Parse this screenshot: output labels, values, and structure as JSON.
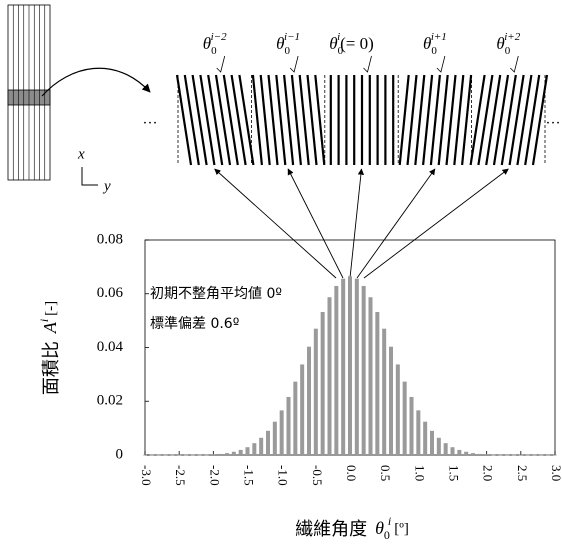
{
  "chart_data": {
    "type": "bar",
    "x": [
      -3.0,
      -2.9,
      -2.8,
      -2.7,
      -2.6,
      -2.5,
      -2.4,
      -2.3,
      -2.2,
      -2.1,
      -2.0,
      -1.9,
      -1.8,
      -1.7,
      -1.6,
      -1.5,
      -1.4,
      -1.3,
      -1.2,
      -1.1,
      -1.0,
      -0.9,
      -0.8,
      -0.7,
      -0.6,
      -0.5,
      -0.4,
      -0.3,
      -0.2,
      -0.1,
      0,
      0.1,
      0.2,
      0.3,
      0.4,
      0.5,
      0.6,
      0.7,
      0.8,
      0.9,
      1.0,
      1.1,
      1.2,
      1.3,
      1.4,
      1.5,
      1.6,
      1.7,
      1.8,
      1.9,
      2.0,
      2.1,
      2.2,
      2.3,
      2.4,
      2.5,
      2.6,
      2.7,
      2.8,
      2.9,
      3.0
    ],
    "values": [
      0.0001,
      0.0001,
      0.0001,
      0.0001,
      0.0001,
      0.0001,
      0.0001,
      0.0001,
      0.0001,
      0.0001,
      0.0003,
      0.0004,
      0.0007,
      0.0012,
      0.0019,
      0.0029,
      0.0044,
      0.0064,
      0.009,
      0.0124,
      0.0166,
      0.0216,
      0.0273,
      0.0337,
      0.0403,
      0.047,
      0.0532,
      0.0587,
      0.0629,
      0.0656,
      0.0665,
      0.0656,
      0.0629,
      0.0587,
      0.0532,
      0.047,
      0.0403,
      0.0337,
      0.0273,
      0.0216,
      0.0166,
      0.0124,
      0.009,
      0.0064,
      0.0044,
      0.0029,
      0.0019,
      0.0012,
      0.0007,
      0.0004,
      0.0003,
      0.0001,
      0.0001,
      0.0001,
      0.0001,
      0.0001,
      0.0001,
      0.0001,
      0.0001,
      0.0001,
      0.0001
    ],
    "color": "#9a9a9a",
    "xlim": [
      -3.0,
      3.0
    ],
    "xticks": [
      {
        "value": -3.0,
        "label": "-3.0"
      },
      {
        "value": -2.5,
        "label": "-2.5"
      },
      {
        "value": -2.0,
        "label": "-2.0"
      },
      {
        "value": -1.5,
        "label": "-1.5"
      },
      {
        "value": -1.0,
        "label": "-1.0"
      },
      {
        "value": -0.5,
        "label": "-0.5"
      },
      {
        "value": 0,
        "label": "0.0"
      },
      {
        "value": 0.5,
        "label": "0.5"
      },
      {
        "value": 1.0,
        "label": "1.0"
      },
      {
        "value": 1.5,
        "label": "1.5"
      },
      {
        "value": 2.0,
        "label": "2.0"
      },
      {
        "value": 2.5,
        "label": "2.5"
      },
      {
        "value": 3.0,
        "label": "3.0"
      }
    ],
    "ylim": [
      0,
      0.08
    ],
    "yticks": [
      0,
      0.02,
      0.04,
      0.06,
      0.08
    ],
    "xlabel": {
      "text": "繊維角度",
      "symbol": "θ",
      "sub": "0",
      "sup": "i",
      "unit": "[º]"
    },
    "ylabel": {
      "text": "面積比",
      "symbol": "A",
      "sup": "i",
      "unit": "[-]"
    },
    "annotations": [
      "初期不整角平均値 0º",
      "標準偏差 0.6º"
    ]
  },
  "diagram": {
    "axis_x": "x",
    "axis_y": "y",
    "ellipsis": "…",
    "labels": [
      {
        "base": "θ",
        "sub": "0",
        "sup": "i−2"
      },
      {
        "base": "θ",
        "sub": "0",
        "sup": "i−1"
      },
      {
        "base": "θ",
        "sub": "0",
        "sup": "i",
        "suffix": "(= 0)"
      },
      {
        "base": "θ",
        "sub": "0",
        "sup": "i+1"
      },
      {
        "base": "θ",
        "sub": "0",
        "sup": "i+2"
      }
    ]
  }
}
